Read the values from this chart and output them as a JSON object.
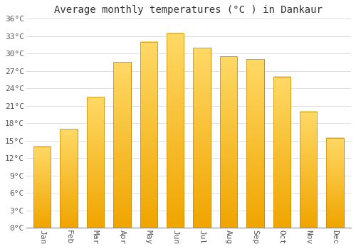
{
  "title": "Average monthly temperatures (°C ) in Dankaur",
  "months": [
    "Jan",
    "Feb",
    "Mar",
    "Apr",
    "May",
    "Jun",
    "Jul",
    "Aug",
    "Sep",
    "Oct",
    "Nov",
    "Dec"
  ],
  "values": [
    14,
    17,
    22.5,
    28.5,
    32,
    33.5,
    31,
    29.5,
    29,
    26,
    20,
    15.5
  ],
  "bar_color_top": "#FFD966",
  "bar_color_bottom": "#F0A500",
  "bar_edge_color": "#CC8800",
  "ylim": [
    0,
    36
  ],
  "yticks": [
    0,
    3,
    6,
    9,
    12,
    15,
    18,
    21,
    24,
    27,
    30,
    33,
    36
  ],
  "ytick_labels": [
    "0°C",
    "3°C",
    "6°C",
    "9°C",
    "12°C",
    "15°C",
    "18°C",
    "21°C",
    "24°C",
    "27°C",
    "30°C",
    "33°C",
    "36°C"
  ],
  "background_color": "#ffffff",
  "grid_color": "#e0e0e0",
  "title_fontsize": 10,
  "tick_fontsize": 8,
  "font_family": "monospace"
}
